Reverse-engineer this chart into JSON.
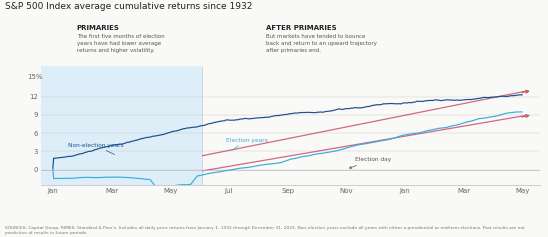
{
  "title": "S&P 500 Index average cumulative returns since 1932",
  "background_color": "#f9f9f7",
  "shaded_region_color": "#ddeef8",
  "primaries_label": "PRIMARIES",
  "primaries_text": "The first five months of election\nyears have had lower average\nreturns and higher volatility.",
  "after_primaries_label": "AFTER PRIMARIES",
  "after_primaries_text": "But markets have tended to bounce\nback and return to an upward trajectory\nafter primaries end.",
  "ytick_vals": [
    0,
    3,
    6,
    9,
    12
  ],
  "ylim": [
    -2.5,
    17
  ],
  "xlabel_ticks": [
    "Jan",
    "Mar",
    "May",
    "Jul",
    "Sep",
    "Nov",
    "Jan",
    "Mar",
    "May"
  ],
  "xtick_positions": [
    0,
    1,
    2,
    3,
    4,
    5,
    6,
    7,
    8
  ],
  "footnote": "SOURCES: Capital Group, RIMES, Standard & Poor's. Includes all daily price returns from January 1, 1932 through December 31, 2023. Non-election years exclude all years with either a presidential or midterm elections. Past results are not predictive of results in future periods.",
  "non_election_color": "#1b4f8c",
  "election_color": "#3aabdb",
  "trend_color": "#c85070",
  "trend_alpha": 0.85,
  "non_election_label": "Non-election years",
  "election_label": "Election years",
  "election_day_label": "Election day",
  "shaded_end_x": 2.55,
  "election_day_x": 5.0,
  "xlim": [
    -0.2,
    8.3
  ]
}
